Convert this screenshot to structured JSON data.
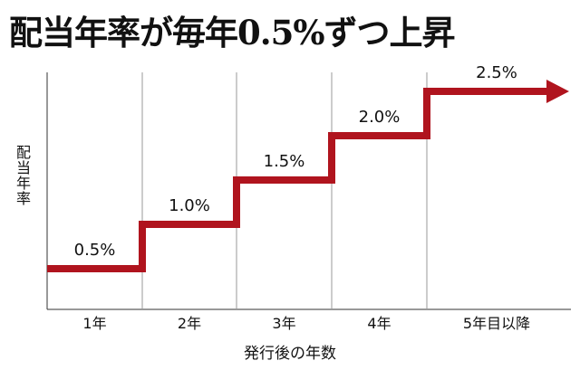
{
  "chart_data": {
    "type": "line",
    "step": true,
    "title": "配当年率が毎年0.5%ずつ上昇",
    "xlabel": "発行後の年数",
    "ylabel": "配当年率",
    "categories": [
      "1年",
      "2年",
      "3年",
      "4年",
      "5年目以降"
    ],
    "values": [
      0.5,
      1.0,
      1.5,
      2.0,
      2.5
    ],
    "data_labels": [
      "0.5%",
      "1.0%",
      "1.5%",
      "2.0%",
      "2.5%"
    ],
    "last_segment_arrow": true,
    "vertical_grid": true,
    "colors": {
      "series": "#b0141e",
      "grid": "#9a9a9a",
      "axis": "#333333"
    }
  }
}
